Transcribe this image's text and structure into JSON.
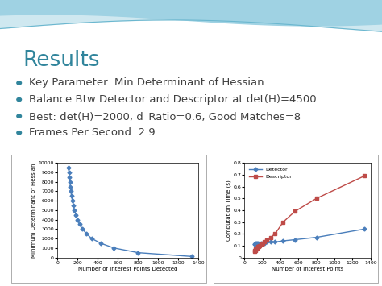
{
  "title": "Results",
  "bullets": [
    "Key Parameter: Min Determinant of Hessian",
    "Balance Btw Detector and Descriptor at det(H)=4500",
    "Best: det(H)=2000, d_Ratio=0.6, Good Matches=8",
    "Frames Per Second: 2.9"
  ],
  "chart_data": [
    {
      "type": "line",
      "x_label": "Number of Interest Points Detected",
      "y_label": "Minimum Determinant of Hessian",
      "x": [
        110,
        115,
        120,
        125,
        130,
        135,
        140,
        150,
        160,
        170,
        185,
        200,
        220,
        250,
        290,
        340,
        430,
        560,
        800,
        1330
      ],
      "values": [
        9500,
        9000,
        8500,
        8000,
        7500,
        7000,
        6500,
        6000,
        5500,
        5000,
        4500,
        4000,
        3500,
        3000,
        2500,
        2000,
        1500,
        1000,
        500,
        100
      ],
      "color": "#4a7ebb",
      "marker": "diamond",
      "xlim": [
        0,
        1400
      ],
      "xticks": [
        0,
        200,
        400,
        600,
        800,
        1000,
        1200,
        1400
      ],
      "ylim": [
        0,
        10000
      ],
      "yticks": [
        0,
        1000,
        2000,
        3000,
        4000,
        5000,
        6000,
        7000,
        8000,
        9000,
        10000
      ]
    },
    {
      "type": "line",
      "x_label": "Number of Interest Points",
      "y_label": "Computation Time (s)",
      "x": [
        110,
        115,
        120,
        125,
        130,
        135,
        140,
        150,
        160,
        170,
        185,
        200,
        220,
        250,
        290,
        340,
        430,
        560,
        800,
        1330
      ],
      "series": [
        {
          "name": "Detector",
          "color": "#4a7ebb",
          "marker": "diamond",
          "values": [
            0.11,
            0.11,
            0.12,
            0.11,
            0.12,
            0.11,
            0.12,
            0.12,
            0.11,
            0.12,
            0.12,
            0.12,
            0.12,
            0.13,
            0.13,
            0.13,
            0.14,
            0.15,
            0.17,
            0.24
          ]
        },
        {
          "name": "Descriptor",
          "color": "#be4b48",
          "marker": "square",
          "values": [
            0.05,
            0.06,
            0.06,
            0.07,
            0.07,
            0.08,
            0.08,
            0.09,
            0.09,
            0.1,
            0.11,
            0.12,
            0.13,
            0.15,
            0.17,
            0.2,
            0.3,
            0.39,
            0.5,
            0.69
          ]
        }
      ],
      "legend": "upper left",
      "xlim": [
        0,
        1400
      ],
      "xticks": [
        0,
        200,
        400,
        600,
        800,
        1000,
        1200,
        1400
      ],
      "ylim": [
        0,
        0.8
      ],
      "yticks": [
        0,
        0.1,
        0.2,
        0.3,
        0.4,
        0.5,
        0.6,
        0.7,
        0.8
      ]
    }
  ]
}
